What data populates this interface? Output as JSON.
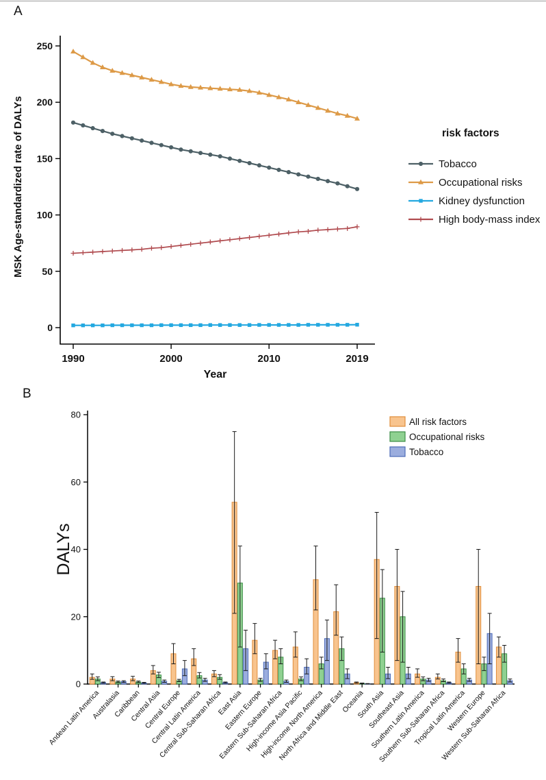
{
  "figure": {
    "panelA_label": "A",
    "panelB_label": "B"
  },
  "panelA": {
    "chart_data": {
      "type": "line",
      "title": "",
      "xlabel": "Year",
      "ylabel": "MSK Age-standardized rate of DALYs",
      "legend_title": "risk factors",
      "legend_position": "right",
      "grid": false,
      "ylim": [
        0,
        250
      ],
      "yticks": [
        0,
        50,
        100,
        150,
        200,
        250
      ],
      "xticks": [
        1990,
        2000,
        2010,
        2019
      ],
      "years": [
        1990,
        1991,
        1992,
        1993,
        1994,
        1995,
        1996,
        1997,
        1998,
        1999,
        2000,
        2001,
        2002,
        2003,
        2004,
        2005,
        2006,
        2007,
        2008,
        2009,
        2010,
        2011,
        2012,
        2013,
        2014,
        2015,
        2016,
        2017,
        2018,
        2019
      ],
      "series": [
        {
          "name": "Tobacco",
          "color": "#4d6066",
          "marker": "circle",
          "values": [
            182,
            179.5,
            177,
            174.5,
            172,
            170,
            168,
            166,
            164,
            162,
            160,
            158,
            156.5,
            155,
            153.5,
            152,
            150,
            148,
            146,
            144,
            142,
            140,
            138,
            136,
            134,
            132,
            130,
            128,
            125.5,
            123
          ]
        },
        {
          "name": "Occupational risks",
          "color": "#dd9a47",
          "marker": "triangle",
          "values": [
            245,
            240,
            235,
            231,
            228,
            226,
            224,
            222,
            220,
            218,
            216,
            214.5,
            213.5,
            213,
            212.5,
            212,
            211.5,
            211,
            210,
            208.5,
            206.5,
            204.5,
            202.5,
            200,
            197.5,
            195,
            192.5,
            190,
            188,
            185.5
          ]
        },
        {
          "name": "Kidney dysfunction",
          "color": "#23a8e0",
          "marker": "square",
          "values": [
            2,
            2,
            2,
            2,
            2.1,
            2.1,
            2.1,
            2.1,
            2.1,
            2.2,
            2.2,
            2.2,
            2.2,
            2.2,
            2.3,
            2.3,
            2.3,
            2.3,
            2.3,
            2.4,
            2.4,
            2.4,
            2.4,
            2.4,
            2.5,
            2.5,
            2.5,
            2.5,
            2.5,
            2.6
          ]
        },
        {
          "name": "High body-mass index",
          "color": "#b04b4f",
          "marker": "plus",
          "values": [
            66,
            66.5,
            67,
            67.5,
            68,
            68.5,
            69,
            69.5,
            70.5,
            71,
            72,
            73,
            74,
            75,
            76,
            77,
            78,
            79,
            80,
            81,
            82,
            83,
            84,
            85,
            85.5,
            86.5,
            87,
            87.5,
            88,
            89.5
          ]
        }
      ]
    }
  },
  "panelB": {
    "chart_data": {
      "type": "bar",
      "title": "",
      "xlabel": "",
      "ylabel": "DALYs",
      "legend_position": "top-right",
      "grid": false,
      "ylim": [
        0,
        80
      ],
      "yticks": [
        0,
        20,
        40,
        60,
        80
      ],
      "categories": [
        "Andean Latin America",
        "Australasia",
        "Caribbean",
        "Central Asia",
        "Central Europe",
        "Central Latin America",
        "Central Sub-Saharan Africa",
        "East Asia",
        "Eastern Europe",
        "Eastern Sub-Saharan Africa",
        "High-income Asia Pacific",
        "High-income North America",
        "North Africa and Middle East",
        "Oceania",
        "South Asia",
        "Southeast Asia",
        "Southern Latin America",
        "Southern Sub-Saharan Africa",
        "Tropical Latin America",
        "Western Europe",
        "Western Sub-Saharan Africa"
      ],
      "series": [
        {
          "name": "All risk factors",
          "fill": "#f8c48e",
          "stroke": "#e08e3c",
          "values": [
            2,
            1.5,
            1.5,
            4,
            9,
            7.5,
            3,
            54,
            13,
            10,
            11,
            31,
            21.5,
            0.4,
            37,
            29,
            3,
            2,
            9.5,
            29,
            11
          ],
          "err_lo": [
            1.4,
            1,
            1,
            3,
            6,
            5.5,
            2.2,
            21,
            9,
            7.5,
            8,
            22,
            14.5,
            0.25,
            13.5,
            7,
            2,
            1.5,
            6.5,
            6,
            8
          ],
          "err_hi": [
            3,
            2.2,
            2.3,
            5.5,
            12,
            10.5,
            4,
            75,
            18,
            13,
            15.5,
            41,
            29.5,
            0.6,
            51,
            40,
            4.5,
            3,
            13.5,
            40,
            14
          ]
        },
        {
          "name": "Occupational risks",
          "fill": "#8fd191",
          "stroke": "#3c8d47",
          "values": [
            1.5,
            0.6,
            0.6,
            2.7,
            1,
            2.5,
            2,
            30,
            1.2,
            8,
            1.5,
            6,
            10.5,
            0.2,
            25.5,
            20,
            1.5,
            1,
            4.5,
            6,
            9
          ],
          "err_lo": [
            1,
            0.4,
            0.4,
            1.9,
            0.7,
            1.8,
            1.4,
            11,
            0.8,
            6,
            1,
            4.5,
            7,
            0.12,
            9.5,
            6.5,
            1,
            0.7,
            3,
            4,
            6.5
          ],
          "err_hi": [
            2.1,
            0.9,
            0.9,
            3.5,
            1.4,
            3.4,
            2.8,
            41,
            1.7,
            10.5,
            2.1,
            8,
            14,
            0.3,
            34,
            27.5,
            2.1,
            1.5,
            6,
            8,
            11.5
          ]
        },
        {
          "name": "Tobacco",
          "fill": "#9badde",
          "stroke": "#4d6cb8",
          "values": [
            0.4,
            0.7,
            0.3,
            0.8,
            4.5,
            1.2,
            0.4,
            10.5,
            6.5,
            0.8,
            5,
            13.5,
            3,
            0.1,
            3,
            3,
            1.2,
            0.4,
            1.2,
            15,
            1
          ],
          "err_lo": [
            0.25,
            0.45,
            0.2,
            0.5,
            2.5,
            0.8,
            0.25,
            4,
            4.5,
            0.5,
            3,
            7,
            1.6,
            0.06,
            1.6,
            1.6,
            0.8,
            0.25,
            0.8,
            6,
            0.6
          ],
          "err_hi": [
            0.6,
            1,
            0.5,
            1.2,
            7,
            1.7,
            0.6,
            16,
            9,
            1.2,
            7.5,
            19,
            4.5,
            0.16,
            5,
            5,
            1.7,
            0.6,
            1.7,
            21,
            1.5
          ]
        }
      ]
    }
  }
}
